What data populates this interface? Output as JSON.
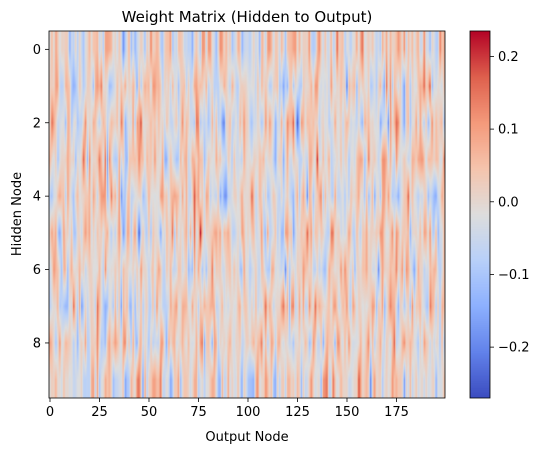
{
  "chart_data": {
    "type": "heatmap",
    "title": "Weight Matrix (Hidden to Output)",
    "xlabel": "Output Node",
    "ylabel": "Hidden Node",
    "rows": 10,
    "cols": 200,
    "x_ticks": [
      0,
      25,
      50,
      75,
      100,
      125,
      150,
      175
    ],
    "y_ticks": [
      0,
      2,
      4,
      6,
      8
    ],
    "colormap": "coolwarm",
    "vmin": -0.27,
    "vmax": 0.235,
    "colorbar_ticks": [
      0.2,
      0.1,
      0.0,
      -0.1,
      -0.2
    ],
    "colorbar_tick_labels": [
      "0.2",
      "0.1",
      "0.0",
      "−0.1",
      "−0.2"
    ],
    "interpolation": "smoothed",
    "value_note": "Weights approximately in [-0.27, 0.235]; individual cell values not labeled"
  }
}
